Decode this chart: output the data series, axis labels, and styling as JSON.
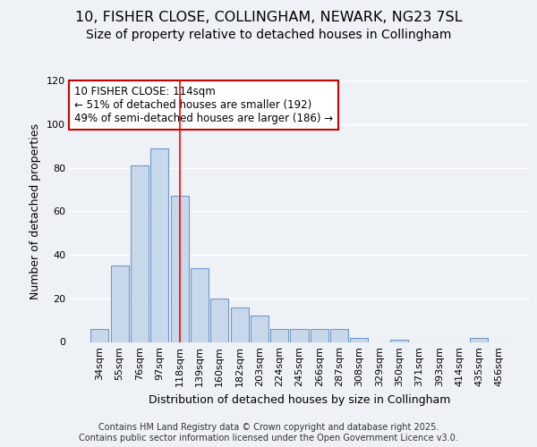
{
  "title_line1": "10, FISHER CLOSE, COLLINGHAM, NEWARK, NG23 7SL",
  "title_line2": "Size of property relative to detached houses in Collingham",
  "xlabel": "Distribution of detached houses by size in Collingham",
  "ylabel": "Number of detached properties",
  "categories": [
    "34sqm",
    "55sqm",
    "76sqm",
    "97sqm",
    "118sqm",
    "139sqm",
    "160sqm",
    "182sqm",
    "203sqm",
    "224sqm",
    "245sqm",
    "266sqm",
    "287sqm",
    "308sqm",
    "329sqm",
    "350sqm",
    "371sqm",
    "393sqm",
    "414sqm",
    "435sqm",
    "456sqm"
  ],
  "bar_values": [
    6,
    35,
    81,
    89,
    67,
    34,
    20,
    16,
    12,
    6,
    6,
    6,
    6,
    2,
    0,
    1,
    0,
    0,
    0,
    2,
    0
  ],
  "bar_color": "#c8d8eb",
  "bar_edgecolor": "#7098c8",
  "background_color": "#eef2f7",
  "plot_bg_color": "#eef2f7",
  "grid_color": "#ffffff",
  "redline_index": 4,
  "annotation_text": "10 FISHER CLOSE: 114sqm\n← 51% of detached houses are smaller (192)\n49% of semi-detached houses are larger (186) →",
  "annotation_box_facecolor": "#ffffff",
  "annotation_box_edgecolor": "#cc0000",
  "ylim": [
    0,
    120
  ],
  "yticks": [
    0,
    20,
    40,
    60,
    80,
    100,
    120
  ],
  "footnote": "Contains HM Land Registry data © Crown copyright and database right 2025.\nContains public sector information licensed under the Open Government Licence v3.0.",
  "title_fontsize": 11.5,
  "subtitle_fontsize": 10,
  "axis_label_fontsize": 9,
  "tick_fontsize": 8,
  "annot_fontsize": 8.5,
  "footnote_fontsize": 7
}
